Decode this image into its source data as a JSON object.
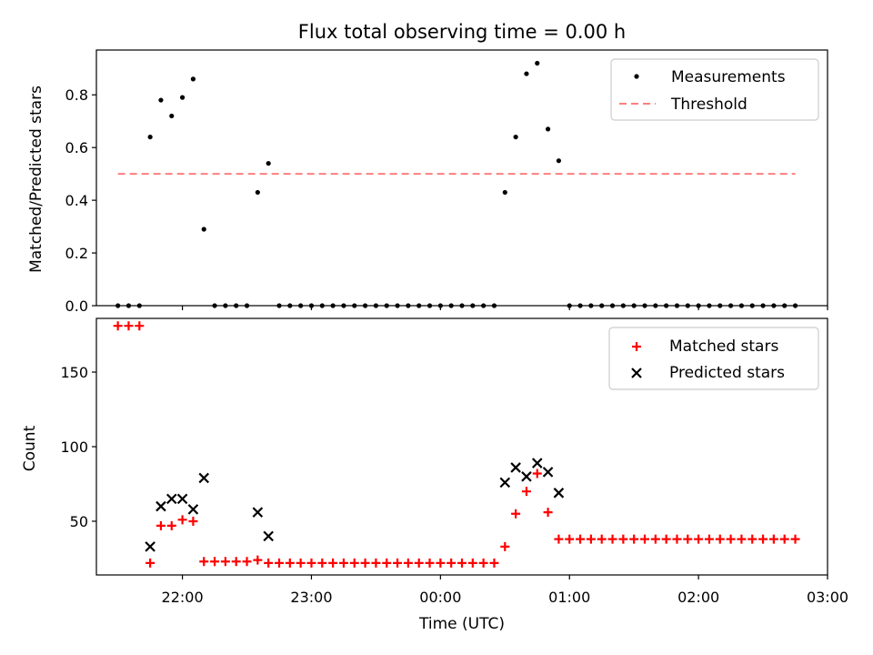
{
  "chart_data": [
    {
      "type": "scatter",
      "title": "Flux total observing time = 0.00 h",
      "xlabel": "",
      "ylabel": "Matched/Predicted stars",
      "ylim": [
        0,
        0.97
      ],
      "yticks": [
        0.0,
        0.2,
        0.4,
        0.6,
        0.8
      ],
      "ytick_labels": [
        "0.0",
        "0.2",
        "0.4",
        "0.6",
        "0.8"
      ],
      "legend": {
        "position": "upper-right",
        "entries": [
          "Measurements",
          "Threshold"
        ]
      },
      "threshold": {
        "name": "Threshold",
        "value": 0.5,
        "x_start": "21:30",
        "x_end": "02:45",
        "color": "#ff7f7f",
        "style": "dashed"
      },
      "series": [
        {
          "name": "Measurements",
          "marker": "dot",
          "color": "#000000",
          "points": [
            [
              "21:30",
              0
            ],
            [
              "21:35",
              0
            ],
            [
              "21:40",
              0
            ],
            [
              "21:45",
              0.64
            ],
            [
              "21:50",
              0.78
            ],
            [
              "21:55",
              0.72
            ],
            [
              "22:00",
              0.79
            ],
            [
              "22:05",
              0.86
            ],
            [
              "22:10",
              0.29
            ],
            [
              "22:15",
              0
            ],
            [
              "22:20",
              0
            ],
            [
              "22:25",
              0
            ],
            [
              "22:30",
              0
            ],
            [
              "22:35",
              0.43
            ],
            [
              "22:40",
              0.54
            ],
            [
              "22:45",
              0
            ],
            [
              "22:50",
              0
            ],
            [
              "22:55",
              0
            ],
            [
              "23:00",
              0
            ],
            [
              "23:05",
              0
            ],
            [
              "23:10",
              0
            ],
            [
              "23:15",
              0
            ],
            [
              "23:20",
              0
            ],
            [
              "23:25",
              0
            ],
            [
              "23:30",
              0
            ],
            [
              "23:35",
              0
            ],
            [
              "23:40",
              0
            ],
            [
              "23:45",
              0
            ],
            [
              "23:50",
              0
            ],
            [
              "23:55",
              0
            ],
            [
              "00:00",
              0
            ],
            [
              "00:05",
              0
            ],
            [
              "00:10",
              0
            ],
            [
              "00:15",
              0
            ],
            [
              "00:20",
              0
            ],
            [
              "00:25",
              0
            ],
            [
              "00:30",
              0.43
            ],
            [
              "00:35",
              0.64
            ],
            [
              "00:40",
              0.88
            ],
            [
              "00:45",
              0.92
            ],
            [
              "00:50",
              0.67
            ],
            [
              "00:55",
              0.55
            ],
            [
              "01:00",
              0
            ],
            [
              "01:05",
              0
            ],
            [
              "01:10",
              0
            ],
            [
              "01:15",
              0
            ],
            [
              "01:20",
              0
            ],
            [
              "01:25",
              0
            ],
            [
              "01:30",
              0
            ],
            [
              "01:35",
              0
            ],
            [
              "01:40",
              0
            ],
            [
              "01:45",
              0
            ],
            [
              "01:50",
              0
            ],
            [
              "01:55",
              0
            ],
            [
              "02:00",
              0
            ],
            [
              "02:05",
              0
            ],
            [
              "02:10",
              0
            ],
            [
              "02:15",
              0
            ],
            [
              "02:20",
              0
            ],
            [
              "02:25",
              0
            ],
            [
              "02:30",
              0
            ],
            [
              "02:35",
              0
            ],
            [
              "02:40",
              0
            ],
            [
              "02:45",
              0
            ]
          ]
        }
      ]
    },
    {
      "type": "scatter",
      "title": "",
      "xlabel": "Time (UTC)",
      "ylabel": "Count",
      "ylim": [
        14,
        186
      ],
      "yticks": [
        50,
        100,
        150
      ],
      "ytick_labels": [
        "50",
        "100",
        "150"
      ],
      "xlim": [
        "21:20",
        "03:00"
      ],
      "xticks": [
        "22:00",
        "23:00",
        "00:00",
        "01:00",
        "02:00",
        "03:00"
      ],
      "legend": {
        "position": "upper-right",
        "entries": [
          "Matched stars",
          "Predicted stars"
        ]
      },
      "series": [
        {
          "name": "Matched stars",
          "marker": "plus",
          "color": "#ff0000",
          "points": [
            [
              "21:30",
              181
            ],
            [
              "21:35",
              181
            ],
            [
              "21:40",
              181
            ],
            [
              "21:45",
              22
            ],
            [
              "21:50",
              47
            ],
            [
              "21:55",
              47
            ],
            [
              "22:00",
              51
            ],
            [
              "22:05",
              50
            ],
            [
              "22:10",
              23
            ],
            [
              "22:15",
              23
            ],
            [
              "22:20",
              23
            ],
            [
              "22:25",
              23
            ],
            [
              "22:30",
              23
            ],
            [
              "22:35",
              24
            ],
            [
              "22:40",
              22
            ],
            [
              "22:45",
              22
            ],
            [
              "22:50",
              22
            ],
            [
              "22:55",
              22
            ],
            [
              "23:00",
              22
            ],
            [
              "23:05",
              22
            ],
            [
              "23:10",
              22
            ],
            [
              "23:15",
              22
            ],
            [
              "23:20",
              22
            ],
            [
              "23:25",
              22
            ],
            [
              "23:30",
              22
            ],
            [
              "23:35",
              22
            ],
            [
              "23:40",
              22
            ],
            [
              "23:45",
              22
            ],
            [
              "23:50",
              22
            ],
            [
              "23:55",
              22
            ],
            [
              "00:00",
              22
            ],
            [
              "00:05",
              22
            ],
            [
              "00:10",
              22
            ],
            [
              "00:15",
              22
            ],
            [
              "00:20",
              22
            ],
            [
              "00:25",
              22
            ],
            [
              "00:30",
              33
            ],
            [
              "00:35",
              55
            ],
            [
              "00:40",
              70
            ],
            [
              "00:45",
              82
            ],
            [
              "00:50",
              56
            ],
            [
              "00:55",
              38
            ],
            [
              "01:00",
              38
            ],
            [
              "01:05",
              38
            ],
            [
              "01:10",
              38
            ],
            [
              "01:15",
              38
            ],
            [
              "01:20",
              38
            ],
            [
              "01:25",
              38
            ],
            [
              "01:30",
              38
            ],
            [
              "01:35",
              38
            ],
            [
              "01:40",
              38
            ],
            [
              "01:45",
              38
            ],
            [
              "01:50",
              38
            ],
            [
              "01:55",
              38
            ],
            [
              "02:00",
              38
            ],
            [
              "02:05",
              38
            ],
            [
              "02:10",
              38
            ],
            [
              "02:15",
              38
            ],
            [
              "02:20",
              38
            ],
            [
              "02:25",
              38
            ],
            [
              "02:30",
              38
            ],
            [
              "02:35",
              38
            ],
            [
              "02:40",
              38
            ],
            [
              "02:45",
              38
            ]
          ]
        },
        {
          "name": "Predicted stars",
          "marker": "cross",
          "color": "#000000",
          "points": [
            [
              "21:45",
              33
            ],
            [
              "21:50",
              60
            ],
            [
              "21:55",
              65
            ],
            [
              "22:00",
              65
            ],
            [
              "22:05",
              58
            ],
            [
              "22:10",
              79
            ],
            [
              "22:35",
              56
            ],
            [
              "22:40",
              40
            ],
            [
              "00:30",
              76
            ],
            [
              "00:35",
              86
            ],
            [
              "00:40",
              80
            ],
            [
              "00:45",
              89
            ],
            [
              "00:50",
              83
            ],
            [
              "00:55",
              69
            ]
          ]
        }
      ]
    }
  ]
}
